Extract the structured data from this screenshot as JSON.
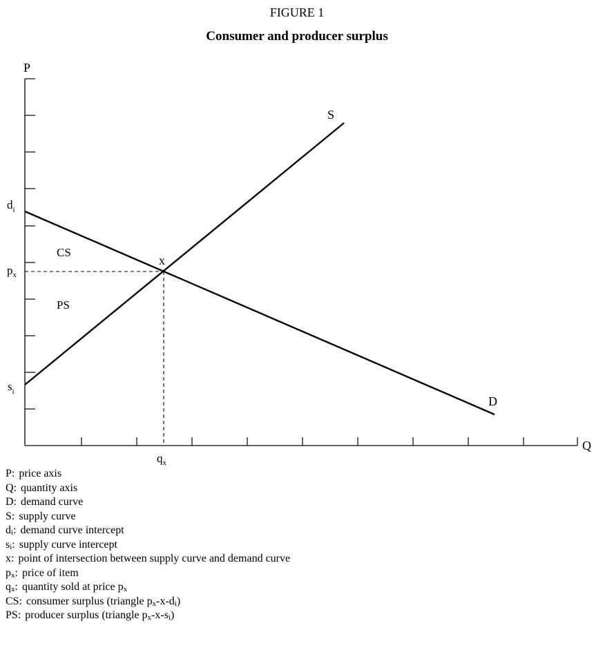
{
  "figure": {
    "number": "FIGURE 1",
    "title": "Consumer and producer surplus"
  },
  "axes": {
    "y_label": "P",
    "x_label": "Q"
  },
  "labels": {
    "supply": "S",
    "demand": "D",
    "demand_intercept_base": "d",
    "demand_intercept_sub": "i",
    "supply_intercept_base": "s",
    "supply_intercept_sub": "i",
    "price_base": "p",
    "price_sub": "x",
    "quantity_base": "q",
    "quantity_sub": "x",
    "intersection": "x",
    "consumer_surplus": "CS",
    "producer_surplus": "PS"
  },
  "legend": [
    {
      "key": "P:",
      "key_sub": "",
      "desc": "price axis",
      "desc_sub": "",
      "desc_tail": ""
    },
    {
      "key": "Q:",
      "key_sub": "",
      "desc": "quantity axis",
      "desc_sub": "",
      "desc_tail": ""
    },
    {
      "key": "D:",
      "key_sub": "",
      "desc": "demand curve",
      "desc_sub": "",
      "desc_tail": ""
    },
    {
      "key": "S:",
      "key_sub": "",
      "desc": "supply curve",
      "desc_sub": "",
      "desc_tail": ""
    },
    {
      "key": "d",
      "key_sub": "i",
      "key_tail": ":",
      "desc": "demand curve intercept",
      "desc_sub": "",
      "desc_tail": ""
    },
    {
      "key": "s",
      "key_sub": "i",
      "key_tail": ":",
      "desc": "supply curve intercept",
      "desc_sub": "",
      "desc_tail": ""
    },
    {
      "key": "x:",
      "key_sub": "",
      "desc": "point of intersection between supply curve and demand curve",
      "desc_sub": "",
      "desc_tail": ""
    },
    {
      "key": "p",
      "key_sub": "x",
      "key_tail": ":",
      "desc": "price of item",
      "desc_sub": "",
      "desc_tail": ""
    },
    {
      "key": "q",
      "key_sub": "x",
      "key_tail": ":",
      "desc": "quantity sold at price p",
      "desc_sub": "x",
      "desc_tail": ""
    },
    {
      "key": "CS:",
      "key_sub": "",
      "desc": "consumer surplus (triangle p",
      "desc_sub": "x",
      "desc_tail": "-x-d",
      "desc_sub2": "i",
      "desc_tail2": ")"
    },
    {
      "key": "PS:",
      "key_sub": "",
      "desc": "producer surplus (triangle p",
      "desc_sub": "x",
      "desc_tail": "-x-s",
      "desc_sub2": "i",
      "desc_tail2": ")"
    }
  ]
}
